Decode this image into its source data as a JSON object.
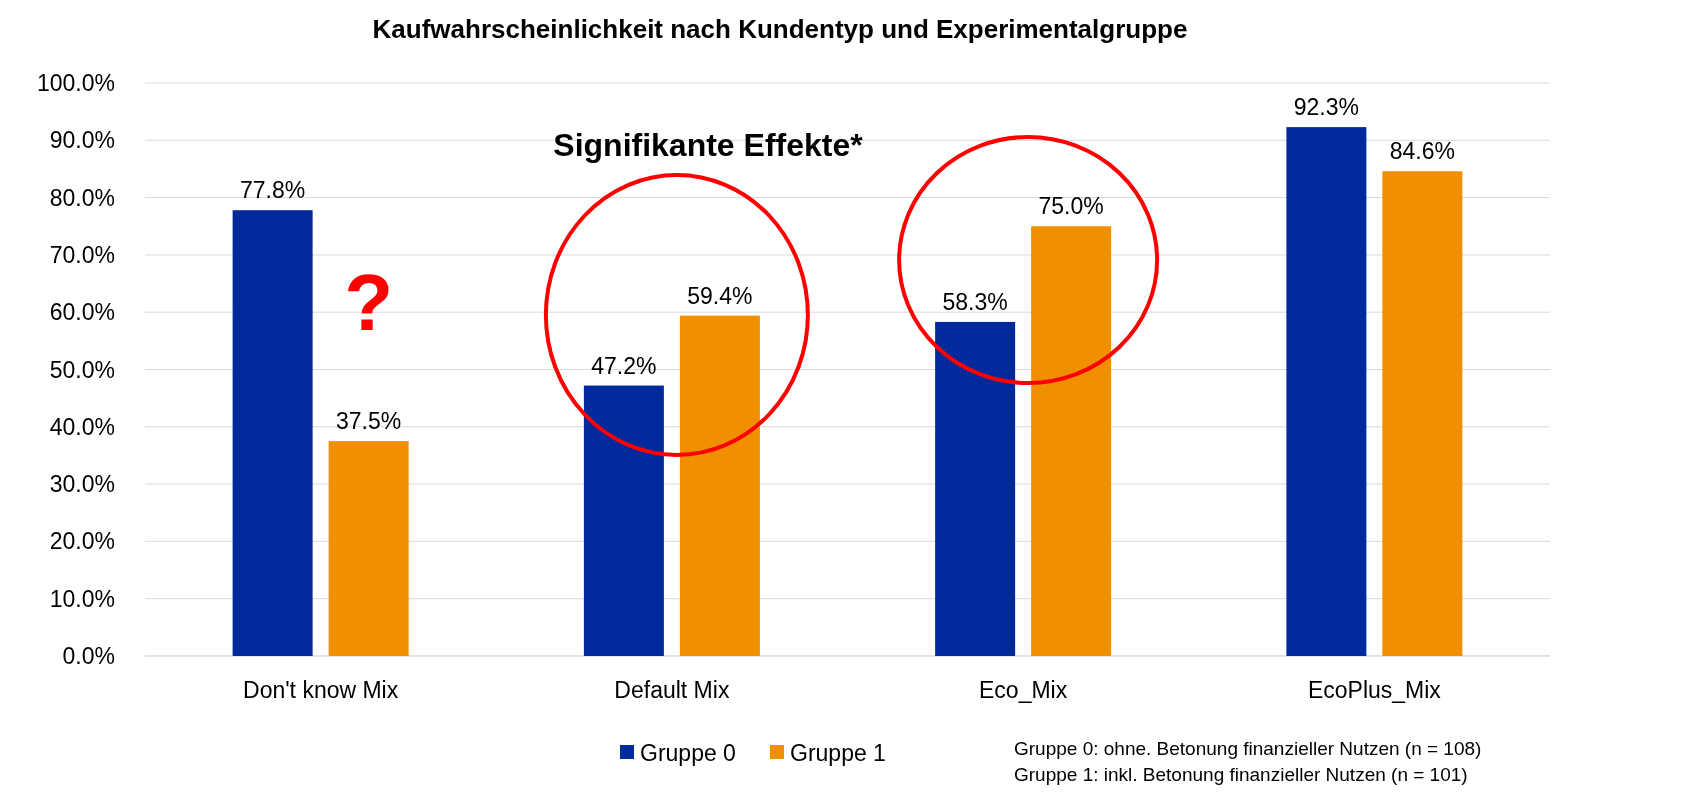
{
  "chart_data": {
    "type": "bar",
    "title": "Kaufwahrscheinlichkeit nach Kundentyp und Experimentalgruppe",
    "categories": [
      "Don't know Mix",
      "Default Mix",
      "Eco_Mix",
      "EcoPlus_Mix"
    ],
    "series": [
      {
        "name": "Gruppe 0",
        "color": "#002a9c",
        "values": [
          77.8,
          47.2,
          58.3,
          92.3
        ]
      },
      {
        "name": "Gruppe 1",
        "color": "#f08f00",
        "values": [
          37.5,
          59.4,
          75.0,
          84.6
        ]
      }
    ],
    "ylim": [
      0,
      100
    ],
    "yticks": [
      {
        "value": 0,
        "label": "0.0%"
      },
      {
        "value": 10,
        "label": "10.0%"
      },
      {
        "value": 20,
        "label": "20.0%"
      },
      {
        "value": 30,
        "label": "30.0%"
      },
      {
        "value": 40,
        "label": "40.0%"
      },
      {
        "value": 50,
        "label": "50.0%"
      },
      {
        "value": 60,
        "label": "60.0%"
      },
      {
        "value": 70,
        "label": "70.0%"
      },
      {
        "value": 80,
        "label": "80.0%"
      },
      {
        "value": 90,
        "label": "90.0%"
      },
      {
        "value": 100,
        "label": "100.0%"
      }
    ],
    "value_labels": [
      [
        "77.8%",
        "47.2%",
        "58.3%",
        "92.3%"
      ],
      [
        "37.5%",
        "59.4%",
        "75.0%",
        "84.6%"
      ]
    ],
    "grid": "y",
    "legend": "bottom",
    "annotations": [
      "Signifikante Effekte*",
      "?",
      "Gruppe 0: ohne. Betonung finanzieller Nutzen (n = 108)",
      "Gruppe 1: inkl. Betonung finanzieller Nutzen (n = 101)"
    ]
  }
}
